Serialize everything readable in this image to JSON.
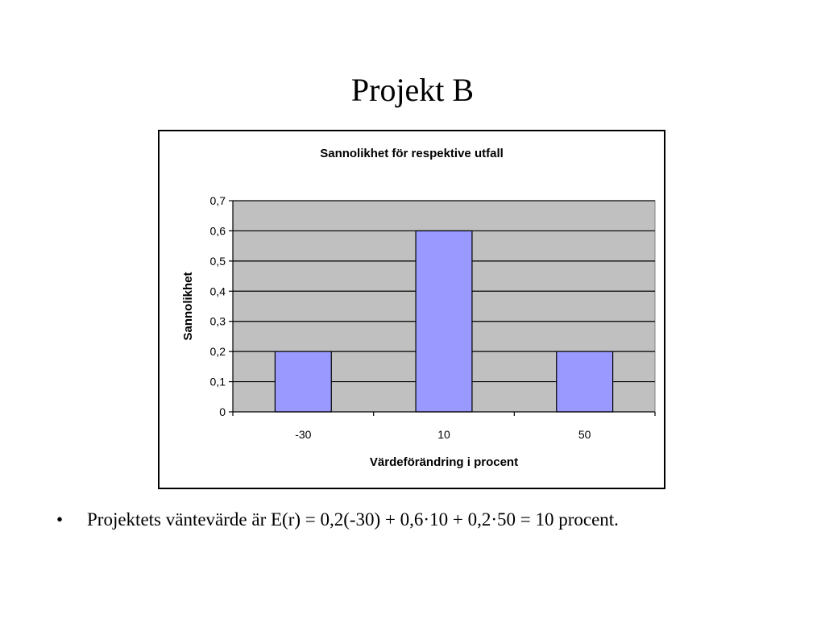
{
  "slide": {
    "title": "Projekt B",
    "bullet_symbol": "•",
    "bullet_text": "Projektets väntevärde är E(r) = 0,2(-30) + 0,6·10 + 0,2·50 = 10 procent."
  },
  "chart_data": {
    "type": "bar",
    "title": "Sannolikhet för respektive utfall",
    "xlabel": "Värdeförändring i procent",
    "ylabel": "Sannolikhet",
    "categories": [
      "-30",
      "10",
      "50"
    ],
    "values": [
      0.2,
      0.6,
      0.2
    ],
    "ylim": [
      0,
      0.7
    ],
    "yticks": [
      0,
      0.1,
      0.2,
      0.3,
      0.4,
      0.5,
      0.6,
      0.7
    ],
    "ytick_labels": [
      "0",
      "0,1",
      "0,2",
      "0,3",
      "0,4",
      "0,5",
      "0,6",
      "0,7"
    ],
    "grid": true,
    "legend": "none",
    "colors": {
      "bar_fill": "#9999ff",
      "plot_background": "#c0c0c0",
      "gridline": "#000000"
    }
  }
}
